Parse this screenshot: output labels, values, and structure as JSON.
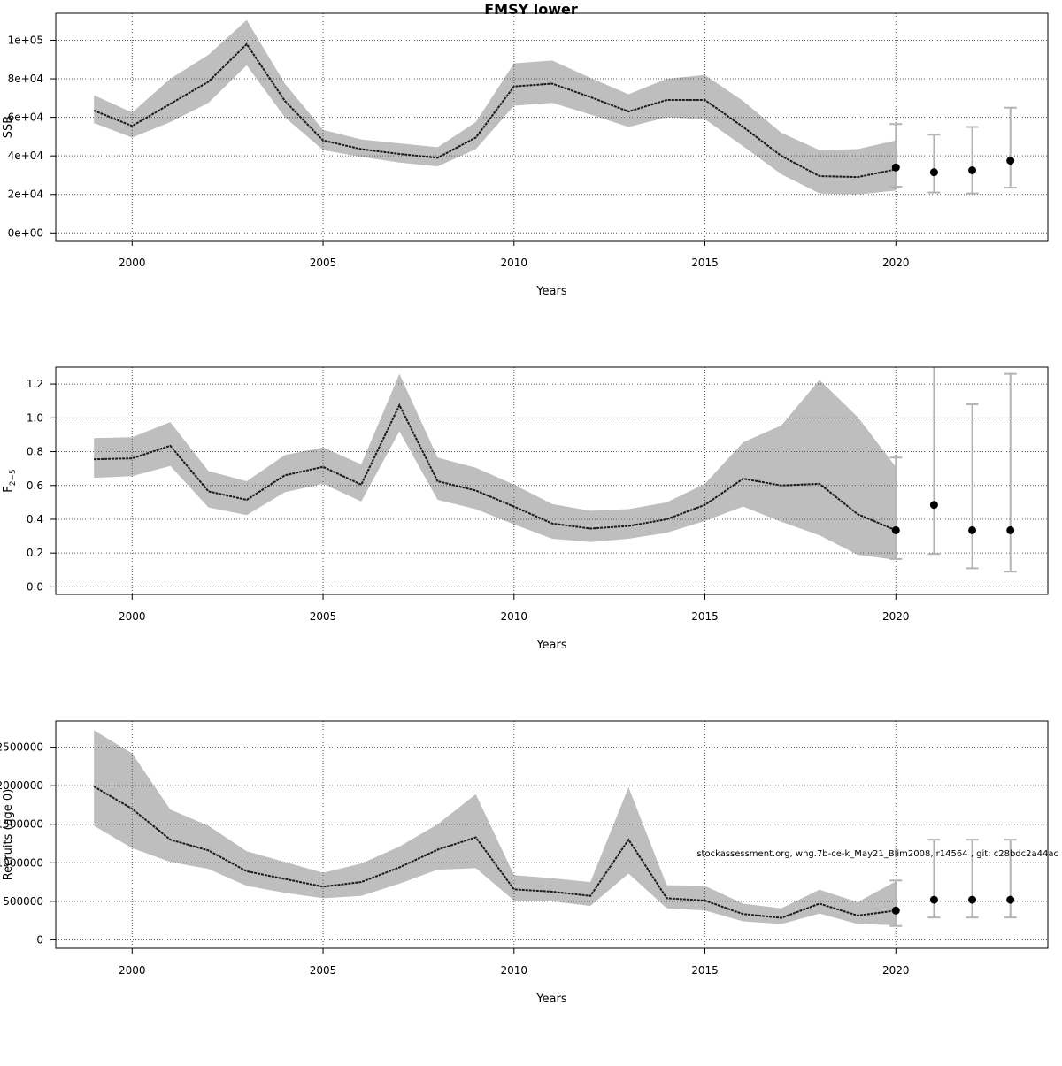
{
  "title": "FMSY lower",
  "footnote": "stockassessment.org, whg.7b-ce-k_May21_Blim2008, r14564 , git: c28bdc2a44ac",
  "colors": {
    "band": "#bebebe",
    "line": "#1a1a1a",
    "point": "#000000",
    "errorbar": "#b3b3b3",
    "grid": "#555555"
  },
  "chart_data": [
    {
      "type": "line",
      "name": "ssb",
      "xlabel": "Years",
      "ylabel": "SSB",
      "xlim": [
        1998,
        2023.98
      ],
      "ylim": [
        -4000,
        114000
      ],
      "x_ticks": [
        2000,
        2005,
        2010,
        2015,
        2020
      ],
      "x_tick_labels": [
        "2000",
        "2005",
        "2010",
        "2015",
        "2020"
      ],
      "y_ticks": [
        0,
        20000,
        40000,
        60000,
        80000,
        100000
      ],
      "y_tick_labels": [
        "0e+00",
        "2e+04",
        "4e+04",
        "6e+04",
        "8e+04",
        "1e+05"
      ],
      "grid": true,
      "estimate": {
        "x": [
          1999,
          2000,
          2001,
          2002,
          2003,
          2004,
          2005,
          2006,
          2007,
          2008,
          2009,
          2010,
          2011,
          2012,
          2013,
          2014,
          2015,
          2016,
          2017,
          2018,
          2019,
          2020
        ],
        "y": [
          63500,
          55500,
          67000,
          78500,
          98000,
          68500,
          48000,
          43500,
          41000,
          39000,
          49500,
          76000,
          77500,
          70500,
          63000,
          69000,
          69000,
          55000,
          40000,
          29500,
          29000,
          33000
        ],
        "lower": [
          57000,
          49500,
          57500,
          67500,
          87000,
          60000,
          43000,
          39500,
          36500,
          34500,
          43500,
          66000,
          67500,
          61500,
          55000,
          60000,
          59000,
          45000,
          30500,
          20500,
          20000,
          22000
        ],
        "upper": [
          71500,
          62500,
          80000,
          92500,
          110500,
          77500,
          53500,
          48500,
          46500,
          44500,
          57500,
          88000,
          89500,
          80500,
          72000,
          80000,
          82000,
          68500,
          52000,
          43000,
          43500,
          48000
        ]
      },
      "forecast": {
        "x": [
          2020,
          2021,
          2022,
          2023
        ],
        "y": [
          34000,
          31500,
          32500,
          37500
        ],
        "lower": [
          24000,
          21000,
          20500,
          23500
        ],
        "upper": [
          56500,
          51000,
          55000,
          65000
        ]
      }
    },
    {
      "type": "line",
      "name": "fbar",
      "xlabel": "Years",
      "ylabel": "F",
      "ylabel_sub": "2−5",
      "xlim": [
        1998,
        2023.98
      ],
      "ylim": [
        -0.045,
        1.3
      ],
      "x_ticks": [
        2000,
        2005,
        2010,
        2015,
        2020
      ],
      "x_tick_labels": [
        "2000",
        "2005",
        "2010",
        "2015",
        "2020"
      ],
      "y_ticks": [
        0.0,
        0.2,
        0.4,
        0.6,
        0.8,
        1.0,
        1.2
      ],
      "y_tick_labels": [
        "0.0",
        "0.2",
        "0.4",
        "0.6",
        "0.8",
        "1.0",
        "1.2"
      ],
      "grid": true,
      "estimate": {
        "x": [
          1999,
          2000,
          2001,
          2002,
          2003,
          2004,
          2005,
          2006,
          2007,
          2008,
          2009,
          2010,
          2011,
          2012,
          2013,
          2014,
          2015,
          2016,
          2017,
          2018,
          2019,
          2020
        ],
        "y": [
          0.755,
          0.76,
          0.835,
          0.565,
          0.515,
          0.66,
          0.71,
          0.605,
          1.075,
          0.625,
          0.57,
          0.475,
          0.375,
          0.345,
          0.36,
          0.4,
          0.485,
          0.64,
          0.6,
          0.61,
          0.43,
          0.335
        ],
        "lower": [
          0.645,
          0.655,
          0.715,
          0.47,
          0.425,
          0.56,
          0.61,
          0.505,
          0.92,
          0.515,
          0.46,
          0.37,
          0.285,
          0.265,
          0.285,
          0.32,
          0.39,
          0.475,
          0.385,
          0.305,
          0.19,
          0.16
        ],
        "upper": [
          0.88,
          0.885,
          0.975,
          0.685,
          0.625,
          0.78,
          0.825,
          0.725,
          1.26,
          0.765,
          0.705,
          0.605,
          0.49,
          0.45,
          0.46,
          0.5,
          0.61,
          0.855,
          0.955,
          1.225,
          1.005,
          0.71
        ]
      },
      "forecast": {
        "x": [
          2020,
          2021,
          2022,
          2023
        ],
        "y": [
          0.335,
          0.485,
          0.335,
          0.335
        ],
        "lower": [
          0.165,
          0.195,
          0.11,
          0.09
        ],
        "upper": [
          0.765,
          1.32,
          1.08,
          1.26
        ]
      }
    },
    {
      "type": "line",
      "name": "recruits",
      "xlabel": "Years",
      "ylabel": "Recruits (age 0)",
      "xlim": [
        1998,
        2023.98
      ],
      "ylim": [
        -110000,
        2840000
      ],
      "x_ticks": [
        2000,
        2005,
        2010,
        2015,
        2020
      ],
      "x_tick_labels": [
        "2000",
        "2005",
        "2010",
        "2015",
        "2020"
      ],
      "y_ticks": [
        0,
        500000,
        1000000,
        1500000,
        2000000,
        2500000
      ],
      "y_tick_labels": [
        "0",
        "500000",
        "1000000",
        "1500000",
        "2000000",
        "2500000"
      ],
      "grid": true,
      "estimate": {
        "x": [
          1999,
          2000,
          2001,
          2002,
          2003,
          2004,
          2005,
          2006,
          2007,
          2008,
          2009,
          2010,
          2011,
          2012,
          2013,
          2014,
          2015,
          2016,
          2017,
          2018,
          2019,
          2020
        ],
        "y": [
          1990000,
          1700000,
          1300000,
          1160000,
          890000,
          790000,
          690000,
          750000,
          940000,
          1170000,
          1330000,
          655000,
          625000,
          570000,
          1300000,
          540000,
          510000,
          335000,
          285000,
          470000,
          315000,
          380000
        ],
        "lower": [
          1480000,
          1190000,
          1010000,
          920000,
          700000,
          610000,
          540000,
          570000,
          730000,
          910000,
          930000,
          510000,
          500000,
          440000,
          860000,
          410000,
          380000,
          240000,
          205000,
          340000,
          205000,
          190000
        ],
        "upper": [
          2720000,
          2420000,
          1690000,
          1480000,
          1150000,
          1010000,
          870000,
          990000,
          1210000,
          1500000,
          1890000,
          840000,
          800000,
          750000,
          1980000,
          710000,
          700000,
          470000,
          410000,
          650000,
          490000,
          760000
        ]
      },
      "forecast": {
        "x": [
          2020,
          2021,
          2022,
          2023
        ],
        "y": [
          380000,
          520000,
          520000,
          520000
        ],
        "lower": [
          180000,
          290000,
          290000,
          290000
        ],
        "upper": [
          770000,
          1300000,
          1300000,
          1300000
        ]
      }
    }
  ]
}
